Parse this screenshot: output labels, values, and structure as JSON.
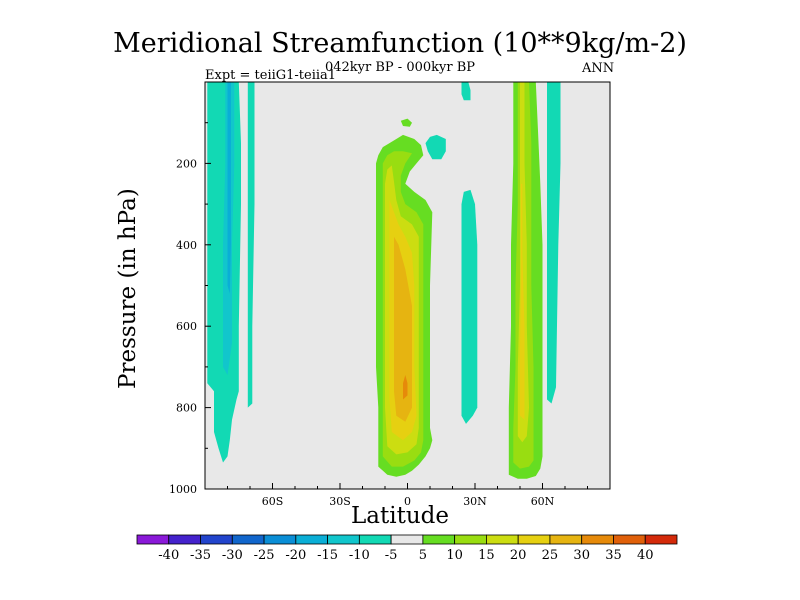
{
  "chart_data": {
    "type": "heatmap",
    "title": "Meridional Streamfunction (10**9kg/m-2)",
    "subtitle": "042kyr BP - 000kyr BP",
    "left_label": "Expt = teiiG1-teiia1",
    "right_label": "ANN",
    "xlabel": "Latitude",
    "ylabel": "Pressure (in hPa)",
    "xlim": [
      -90,
      90
    ],
    "ylim": [
      1000,
      0
    ],
    "y_reversed": true,
    "grid": false,
    "x_ticks": [
      {
        "value": -60,
        "label": "60S"
      },
      {
        "value": -30,
        "label": "30S"
      },
      {
        "value": 0,
        "label": "0"
      },
      {
        "value": 30,
        "label": "30N"
      },
      {
        "value": 60,
        "label": "60N"
      }
    ],
    "y_ticks": [
      {
        "value": 200,
        "label": "200"
      },
      {
        "value": 400,
        "label": "400"
      },
      {
        "value": 600,
        "label": "600"
      },
      {
        "value": 800,
        "label": "800"
      },
      {
        "value": 1000,
        "label": "1000"
      }
    ],
    "background_color": "#e8e8e8",
    "colorbar": {
      "levels": [
        -40,
        -35,
        -30,
        -25,
        -20,
        -15,
        -10,
        -5,
        5,
        10,
        15,
        20,
        25,
        30,
        35,
        40
      ],
      "colors": [
        "#8a19d8",
        "#4422cc",
        "#2244cc",
        "#1166cc",
        "#0a8ed6",
        "#0aaed6",
        "#11c6cc",
        "#12d9b4",
        "#e8e8e8",
        "#66dd22",
        "#99dd11",
        "#ccdd11",
        "#e6d011",
        "#e6b411",
        "#e68a0a",
        "#e0600a",
        "#d42a0a"
      ]
    },
    "regions": [
      {
        "value": 7.5,
        "points": [
          [
            -13,
            945
          ],
          [
            -9,
            965
          ],
          [
            -5,
            970
          ],
          [
            -1,
            965
          ],
          [
            2,
            955
          ],
          [
            5,
            940
          ],
          [
            8,
            920
          ],
          [
            10,
            900
          ],
          [
            11,
            880
          ],
          [
            10,
            850
          ],
          [
            10,
            700
          ],
          [
            10,
            500
          ],
          [
            11,
            320
          ],
          [
            8,
            290
          ],
          [
            3,
            270
          ],
          [
            -1,
            250
          ],
          [
            1,
            220
          ],
          [
            4,
            200
          ],
          [
            7,
            180
          ],
          [
            6,
            155
          ],
          [
            3,
            140
          ],
          [
            -2,
            130
          ],
          [
            -5,
            140
          ],
          [
            -8,
            150
          ],
          [
            -11,
            160
          ],
          [
            -13,
            180
          ],
          [
            -14,
            200
          ],
          [
            -14,
            260
          ],
          [
            -14,
            500
          ],
          [
            -14,
            700
          ],
          [
            -13,
            800
          ],
          [
            -13,
            900
          ]
        ]
      },
      {
        "value": 12.5,
        "points": [
          [
            -11,
            920
          ],
          [
            -7,
            945
          ],
          [
            -2,
            945
          ],
          [
            3,
            930
          ],
          [
            6,
            910
          ],
          [
            7,
            880
          ],
          [
            7,
            700
          ],
          [
            7,
            500
          ],
          [
            7,
            350
          ],
          [
            4,
            320
          ],
          [
            -1,
            300
          ],
          [
            -3,
            270
          ],
          [
            -3,
            230
          ],
          [
            -1,
            200
          ],
          [
            2,
            175
          ],
          [
            -2,
            170
          ],
          [
            -6,
            170
          ],
          [
            -9,
            180
          ],
          [
            -11,
            200
          ],
          [
            -11,
            300
          ],
          [
            -11,
            500
          ],
          [
            -11,
            700
          ],
          [
            -11,
            850
          ]
        ]
      },
      {
        "value": 17.5,
        "points": [
          [
            -9,
            895
          ],
          [
            -5,
            915
          ],
          [
            0,
            910
          ],
          [
            4,
            890
          ],
          [
            5,
            850
          ],
          [
            5,
            700
          ],
          [
            5,
            500
          ],
          [
            5,
            380
          ],
          [
            2,
            350
          ],
          [
            -3,
            330
          ],
          [
            -5,
            290
          ],
          [
            -6,
            245
          ],
          [
            -7,
            205
          ],
          [
            -9,
            215
          ],
          [
            -10,
            250
          ],
          [
            -10,
            400
          ],
          [
            -10,
            600
          ],
          [
            -10,
            800
          ]
        ]
      },
      {
        "value": 22.5,
        "points": [
          [
            -7,
            860
          ],
          [
            -2,
            880
          ],
          [
            2,
            860
          ],
          [
            4,
            820
          ],
          [
            3,
            700
          ],
          [
            3,
            500
          ],
          [
            2,
            420
          ],
          [
            -1,
            380
          ],
          [
            -4,
            350
          ],
          [
            -6,
            320
          ],
          [
            -8,
            290
          ],
          [
            -8,
            400
          ],
          [
            -8,
            600
          ],
          [
            -8,
            780
          ]
        ]
      },
      {
        "value": 27.5,
        "points": [
          [
            -5,
            820
          ],
          [
            -1,
            835
          ],
          [
            2,
            800
          ],
          [
            2,
            700
          ],
          [
            2,
            550
          ],
          [
            -1,
            460
          ],
          [
            -4,
            400
          ],
          [
            -6,
            380
          ],
          [
            -6,
            500
          ],
          [
            -6,
            650
          ],
          [
            -6,
            760
          ]
        ]
      },
      {
        "value": 32.5,
        "points": [
          [
            -2,
            780
          ],
          [
            0,
            770
          ],
          [
            0,
            740
          ],
          [
            -1,
            720
          ],
          [
            -2,
            740
          ]
        ]
      },
      {
        "value": 7.5,
        "points": [
          [
            45,
            965
          ],
          [
            49,
            975
          ],
          [
            53,
            975
          ],
          [
            57,
            968
          ],
          [
            59,
            950
          ],
          [
            60,
            920
          ],
          [
            60,
            850
          ],
          [
            60,
            700
          ],
          [
            60,
            400
          ],
          [
            59,
            250
          ],
          [
            58,
            120
          ],
          [
            57,
            0
          ],
          [
            47,
            0
          ],
          [
            47,
            200
          ],
          [
            46,
            400
          ],
          [
            46,
            600
          ],
          [
            45,
            800
          ]
        ]
      },
      {
        "value": 12.5,
        "points": [
          [
            47,
            935
          ],
          [
            50,
            950
          ],
          [
            54,
            945
          ],
          [
            56,
            930
          ],
          [
            56,
            850
          ],
          [
            56,
            700
          ],
          [
            55,
            500
          ],
          [
            55,
            300
          ],
          [
            55,
            150
          ],
          [
            54,
            0
          ],
          [
            49,
            0
          ],
          [
            49,
            300
          ],
          [
            48,
            500
          ],
          [
            48,
            700
          ],
          [
            47,
            850
          ]
        ]
      },
      {
        "value": 17.5,
        "points": [
          [
            49,
            870
          ],
          [
            51,
            885
          ],
          [
            53,
            870
          ],
          [
            54,
            800
          ],
          [
            53,
            600
          ],
          [
            53,
            400
          ],
          [
            52,
            200
          ],
          [
            52,
            0
          ],
          [
            50,
            0
          ],
          [
            50,
            300
          ],
          [
            50,
            500
          ],
          [
            49,
            700
          ]
        ]
      },
      {
        "value": 22.5,
        "points": [
          [
            50,
            820
          ],
          [
            52,
            830
          ],
          [
            52,
            760
          ],
          [
            52,
            600
          ],
          [
            51,
            420
          ],
          [
            51,
            250
          ],
          [
            50.5,
            250
          ],
          [
            50.5,
            450
          ],
          [
            50,
            650
          ]
        ]
      },
      {
        "value": -7.5,
        "points": [
          [
            -89,
            740
          ],
          [
            -86,
            760
          ],
          [
            -84,
            620
          ],
          [
            -84,
            400
          ],
          [
            -83,
            200
          ],
          [
            -83,
            0
          ],
          [
            -89,
            0
          ]
        ]
      },
      {
        "value": -7.5,
        "points": [
          [
            -86,
            860
          ],
          [
            -84,
            900
          ],
          [
            -82,
            935
          ],
          [
            -80,
            920
          ],
          [
            -79,
            880
          ],
          [
            -78,
            830
          ],
          [
            -76,
            780
          ],
          [
            -75,
            760
          ],
          [
            -75,
            600
          ],
          [
            -74,
            300
          ],
          [
            -74,
            150
          ],
          [
            -75,
            0
          ],
          [
            -84,
            0
          ],
          [
            -84,
            300
          ],
          [
            -85,
            500
          ],
          [
            -86,
            700
          ]
        ]
      },
      {
        "value": -12.5,
        "points": [
          [
            -82,
            700
          ],
          [
            -80,
            720
          ],
          [
            -78,
            640
          ],
          [
            -78,
            400
          ],
          [
            -77,
            200
          ],
          [
            -77,
            0
          ],
          [
            -81,
            0
          ],
          [
            -81,
            200
          ],
          [
            -82,
            400
          ]
        ]
      },
      {
        "value": -17.5,
        "points": [
          [
            -80,
            500
          ],
          [
            -79,
            520
          ],
          [
            -78.5,
            400
          ],
          [
            -78.5,
            150
          ],
          [
            -78.5,
            0
          ],
          [
            -80,
            0
          ],
          [
            -80,
            200
          ]
        ]
      },
      {
        "value": -7.5,
        "points": [
          [
            -71,
            800
          ],
          [
            -69,
            790
          ],
          [
            -69,
            600
          ],
          [
            -68,
            300
          ],
          [
            -68,
            0
          ],
          [
            -71,
            0
          ],
          [
            -71,
            400
          ]
        ]
      },
      {
        "value": -7.5,
        "points": [
          [
            9,
            170
          ],
          [
            11,
            190
          ],
          [
            15,
            190
          ],
          [
            17,
            170
          ],
          [
            17,
            140
          ],
          [
            13,
            130
          ],
          [
            10,
            135
          ],
          [
            8,
            150
          ]
        ]
      },
      {
        "value": 7.5,
        "points": [
          [
            -3,
            95
          ],
          [
            0,
            90
          ],
          [
            2,
            100
          ],
          [
            1,
            110
          ],
          [
            -2,
            108
          ]
        ]
      },
      {
        "value": -7.5,
        "points": [
          [
            24,
            0
          ],
          [
            24,
            30
          ],
          [
            25,
            45
          ],
          [
            28,
            45
          ],
          [
            28,
            20
          ],
          [
            27,
            0
          ]
        ]
      },
      {
        "value": -7.5,
        "points": [
          [
            24,
            820
          ],
          [
            26,
            840
          ],
          [
            29,
            820
          ],
          [
            31,
            800
          ],
          [
            31,
            600
          ],
          [
            31,
            400
          ],
          [
            30,
            300
          ],
          [
            28,
            265
          ],
          [
            25,
            270
          ],
          [
            24,
            300
          ],
          [
            24,
            500
          ],
          [
            24,
            700
          ]
        ]
      },
      {
        "value": -7.5,
        "points": [
          [
            62,
            780
          ],
          [
            64,
            790
          ],
          [
            66,
            750
          ],
          [
            67,
            400
          ],
          [
            68,
            200
          ],
          [
            68,
            0
          ],
          [
            62,
            0
          ],
          [
            62,
            200
          ],
          [
            62,
            400
          ],
          [
            62,
            600
          ]
        ]
      }
    ]
  }
}
